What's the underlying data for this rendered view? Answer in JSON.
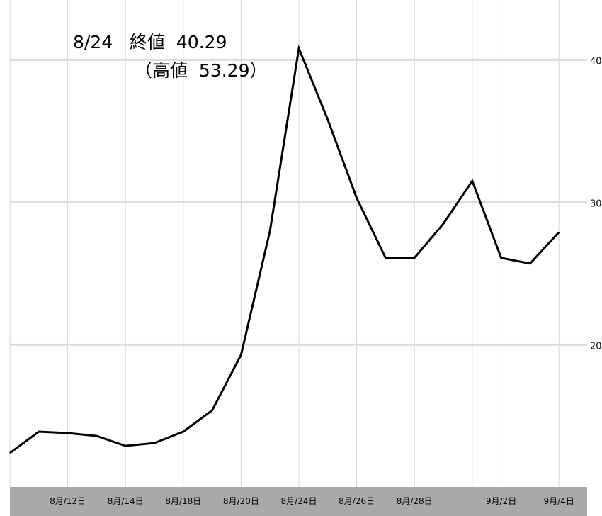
{
  "chart_data": {
    "type": "line",
    "title": "",
    "xlabel": "",
    "ylabel": "",
    "x_tick_labels": [
      "8月/12日",
      "8月/14日",
      "8月/18日",
      "8月/20日",
      "8月/24日",
      "8月/26日",
      "8月/28日",
      "9月/2日",
      "9月/4日"
    ],
    "y_ticks": [
      20,
      30,
      40
    ],
    "ylim": [
      10,
      43
    ],
    "grid": true,
    "series": [
      {
        "values": [
          12.4,
          13.9,
          13.8,
          13.6,
          12.9,
          13.1,
          13.9,
          15.4,
          19.3,
          28.0,
          40.8,
          35.8,
          30.3,
          26.1,
          26.1,
          28.5,
          31.5,
          26.1,
          25.7,
          27.9
        ]
      }
    ],
    "annotations": {
      "close_date": "8/24",
      "close_label": "終値",
      "close_value": "40.29",
      "high_open": "（高値",
      "high_value": "53.29）"
    }
  }
}
